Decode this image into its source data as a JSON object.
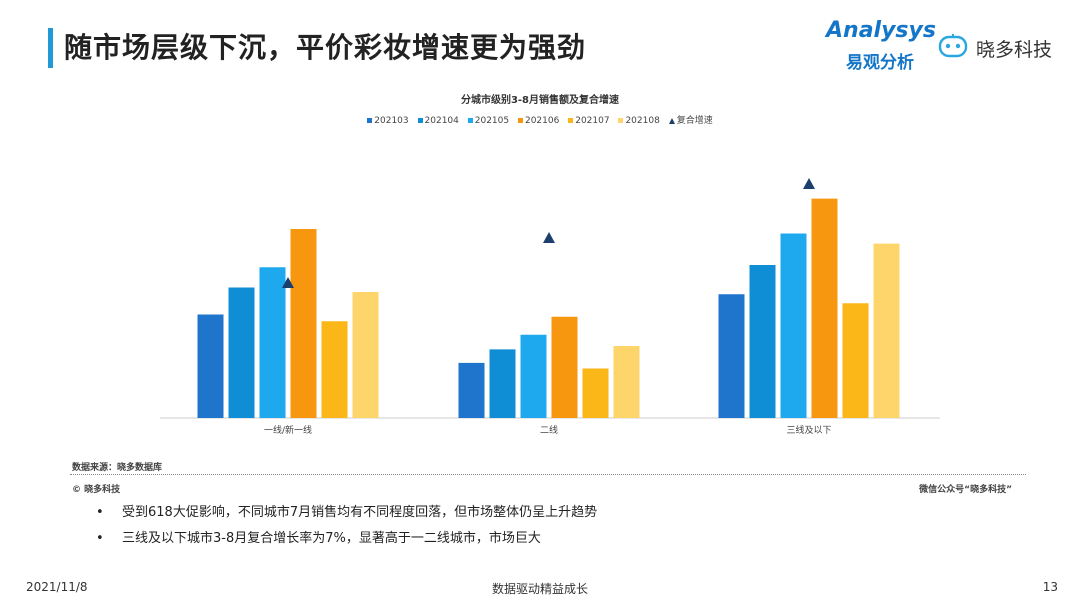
{
  "header": {
    "title": "随市场层级下沉，平价彩妆增速更为强劲",
    "logo_analysys": "Analysys",
    "logo_analysys_cn": "易观分析",
    "logo_xiaoduo": "晓多科技"
  },
  "chart_data": {
    "type": "bar",
    "title": "分城市级别3-8月销售额及复合增速",
    "categories": [
      "一线/新一线",
      "二线",
      "三线及以下"
    ],
    "series": [
      {
        "name": "202103",
        "color": "#1f74cc",
        "values": [
          4.6,
          2.45,
          5.5
        ]
      },
      {
        "name": "202104",
        "color": "#0f8ed6",
        "values": [
          5.8,
          3.05,
          6.8
        ]
      },
      {
        "name": "202105",
        "color": "#1ea9ef",
        "values": [
          6.7,
          3.7,
          8.2
        ]
      },
      {
        "name": "202106",
        "color": "#f7960f",
        "values": [
          8.4,
          4.5,
          9.75
        ]
      },
      {
        "name": "202107",
        "color": "#fbb617",
        "values": [
          4.3,
          2.2,
          5.1
        ]
      },
      {
        "name": "202108",
        "color": "#fed56b",
        "values": [
          5.6,
          3.2,
          7.75
        ]
      }
    ],
    "growth_series": {
      "name": "复合增速",
      "color": "#1c3f6e",
      "values": [
        6.0,
        8.0,
        10.4
      ]
    },
    "ylim": [
      0,
      12
    ],
    "legend_position": "top",
    "grid": false
  },
  "source_note": "数据来源：晓多数据库",
  "copyright": "© 晓多科技",
  "wechat": "微信公众号“晓多科技”",
  "bullets": [
    "受到618大促影响，不同城市7月销售均有不同程度回落，但市场整体仍呈上升趋势",
    "三线及以下城市3-8月复合增长率为7%，显著高于一二线城市，市场巨大"
  ],
  "footer": {
    "date": "2021/11/8",
    "center": "数据驱动精益成长",
    "page": "13"
  }
}
